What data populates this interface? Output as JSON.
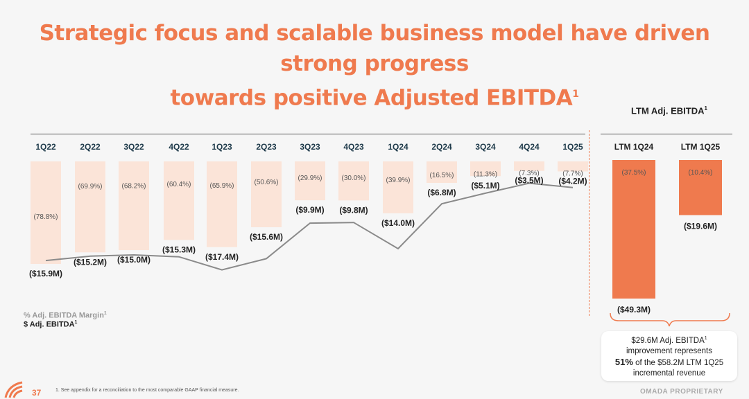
{
  "title": {
    "line1": "Strategic focus and scalable business model have driven strong progress",
    "line2": "towards positive Adjusted EBITDA",
    "footnote_mark": "1"
  },
  "ltm_header": {
    "label": "LTM Adj. EBITDA",
    "footnote_mark": "1"
  },
  "legend": {
    "margin": "% Adj. EBITDA Margin",
    "dollar": "$ Adj. EBITDA",
    "footnote_mark": "1"
  },
  "callout": {
    "line1": "$29.6M Adj. EBITDA",
    "footnote_mark": "1",
    "line2": "improvement represents",
    "pct": "51%",
    "line3": " of the $58.2M LTM 1Q25",
    "line4": "incremental revenue"
  },
  "footer": {
    "page_number": "37",
    "note": "1.   See appendix for a reconciliation to the most comparable GAAP financial measure.",
    "proprietary": "OMADA PROPRIETARY"
  },
  "colors": {
    "accent": "#ef7a4e",
    "bar_light": "#fbe4d8",
    "bar_dark": "#ef7a4e",
    "line": "#8a8a8a"
  },
  "chart_data": [
    {
      "type": "bar",
      "categories": [
        "1Q22",
        "2Q22",
        "3Q22",
        "4Q22",
        "1Q23",
        "2Q23",
        "3Q23",
        "4Q23",
        "1Q24",
        "2Q24",
        "3Q24",
        "4Q24",
        "1Q25"
      ],
      "series": [
        {
          "name": "% Adj. EBITDA Margin",
          "values": [
            -78.8,
            -69.9,
            -68.2,
            -60.4,
            -65.9,
            -50.6,
            -29.9,
            -30.0,
            -39.9,
            -16.5,
            -11.3,
            -7.3,
            -7.7
          ],
          "labels": [
            "(78.8%)",
            "(69.9%)",
            "(68.2%)",
            "(60.4%)",
            "(65.9%)",
            "(50.6%)",
            "(29.9%)",
            "(30.0%)",
            "(39.9%)",
            "(16.5%)",
            "(11.3%)",
            "(7.3%)",
            "(7.7%)"
          ]
        },
        {
          "name": "$ Adj. EBITDA",
          "values": [
            -15.9,
            -15.2,
            -15.0,
            -15.3,
            -17.4,
            -15.6,
            -9.9,
            -9.8,
            -14.0,
            -6.8,
            -5.1,
            -3.5,
            -4.2
          ],
          "labels": [
            "($15.9M)",
            "($15.2M)",
            "($15.0M)",
            "($15.3M)",
            "($17.4M)",
            "($15.6M)",
            "($9.9M)",
            "($9.8M)",
            "($14.0M)",
            "($6.8M)",
            "($5.1M)",
            "($3.5M)",
            "($4.2M)"
          ]
        }
      ]
    },
    {
      "type": "bar",
      "title": "LTM Adj. EBITDA",
      "categories": [
        "LTM 1Q24",
        "LTM 1Q25"
      ],
      "series": [
        {
          "name": "$ Adj. EBITDA",
          "values": [
            -49.3,
            -19.6
          ],
          "labels": [
            "($49.3M)",
            "($19.6M)"
          ]
        },
        {
          "name": "% Adj. EBITDA Margin",
          "values": [
            -37.5,
            -10.4
          ],
          "labels": [
            "(37.5%)",
            "(10.4%)"
          ]
        }
      ]
    }
  ]
}
